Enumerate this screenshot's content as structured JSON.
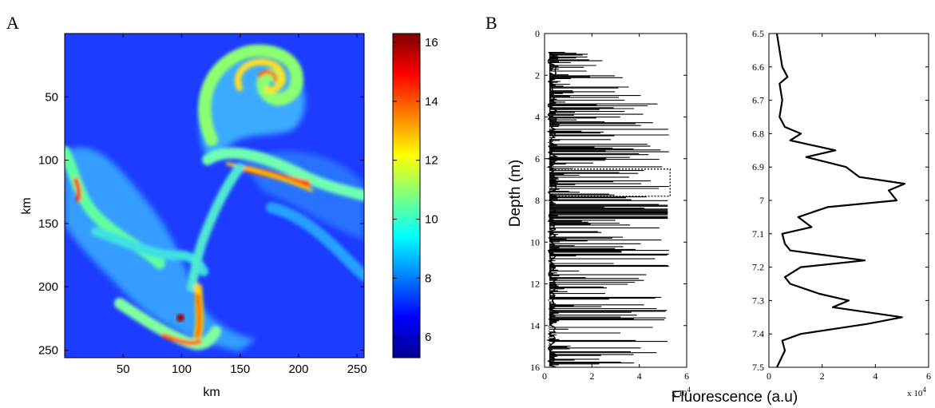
{
  "panels": {
    "a_label": "A",
    "b_label": "B"
  },
  "chart_data": [
    {
      "type": "heatmap",
      "panel": "A",
      "xlabel": "km",
      "ylabel": "km",
      "xlim": [
        0,
        256
      ],
      "ylim": [
        256,
        0
      ],
      "xticks": [
        50,
        100,
        150,
        200,
        250
      ],
      "yticks": [
        50,
        100,
        150,
        200,
        250
      ],
      "colorbar": {
        "ticks": [
          6,
          8,
          10,
          12,
          14,
          16
        ],
        "range": [
          5.3,
          16.3
        ],
        "colormap": "jet"
      },
      "background_value": 6.5,
      "features": [
        {
          "name": "spiral-eddy",
          "center_km": [
            145,
            35
          ],
          "peak": 15
        },
        {
          "name": "upper-filament",
          "from_km": [
            120,
            95
          ],
          "to_km": [
            185,
            115
          ],
          "peak": 15.5
        },
        {
          "name": "left-filament",
          "at_km": [
            10,
            110
          ],
          "peak": 15
        },
        {
          "name": "vertical-filament",
          "from_km": [
            95,
            150
          ],
          "to_km": [
            100,
            225
          ],
          "peak": 16
        },
        {
          "name": "bottom-patch",
          "center_km": [
            95,
            215
          ],
          "peak": 16
        }
      ]
    },
    {
      "type": "line",
      "panel": "B-left",
      "ylabel": "Depth (m)",
      "xlim": [
        0,
        6
      ],
      "ylim": [
        16,
        0
      ],
      "xticks": [
        0,
        2,
        4,
        6
      ],
      "yticks": [
        0,
        2,
        4,
        6,
        8,
        10,
        12,
        14,
        16
      ],
      "x_multiplier": "x 10",
      "x_multiplier_exp": "4",
      "highlight_box": {
        "x": [
          0.3,
          5.3
        ],
        "depth": [
          6.5,
          7.8
        ]
      }
    },
    {
      "type": "line",
      "panel": "B-right",
      "xlabel": "Fluorescence (a.u)",
      "xlim": [
        0,
        6
      ],
      "ylim": [
        7.5,
        6.5
      ],
      "xticks": [
        0,
        2,
        4,
        6
      ],
      "yticks": [
        6.5,
        6.6,
        6.7,
        6.8,
        6.9,
        7,
        7.1,
        7.2,
        7.3,
        7.4,
        7.5
      ],
      "x_multiplier": "x 10",
      "x_multiplier_exp": "4",
      "series": [
        {
          "depth": [
            6.5,
            6.55,
            6.6,
            6.63,
            6.65,
            6.7,
            6.75,
            6.78,
            6.8,
            6.82,
            6.85,
            6.87,
            6.9,
            6.93,
            6.95,
            6.97,
            7.0,
            7.02,
            7.05,
            7.08,
            7.1,
            7.13,
            7.15,
            7.18,
            7.2,
            7.23,
            7.25,
            7.28,
            7.3,
            7.32,
            7.35,
            7.37,
            7.4,
            7.42,
            7.45,
            7.5
          ],
          "values": [
            0.3,
            0.4,
            0.5,
            0.7,
            0.4,
            0.5,
            0.4,
            0.6,
            1.2,
            0.8,
            2.5,
            1.4,
            2.9,
            3.4,
            5.1,
            4.5,
            4.8,
            2.2,
            1.1,
            1.6,
            0.5,
            0.6,
            0.8,
            3.6,
            1.2,
            0.6,
            0.8,
            1.9,
            3.0,
            2.4,
            5.0,
            3.7,
            1.2,
            0.5,
            0.6,
            0.3
          ]
        }
      ]
    }
  ]
}
